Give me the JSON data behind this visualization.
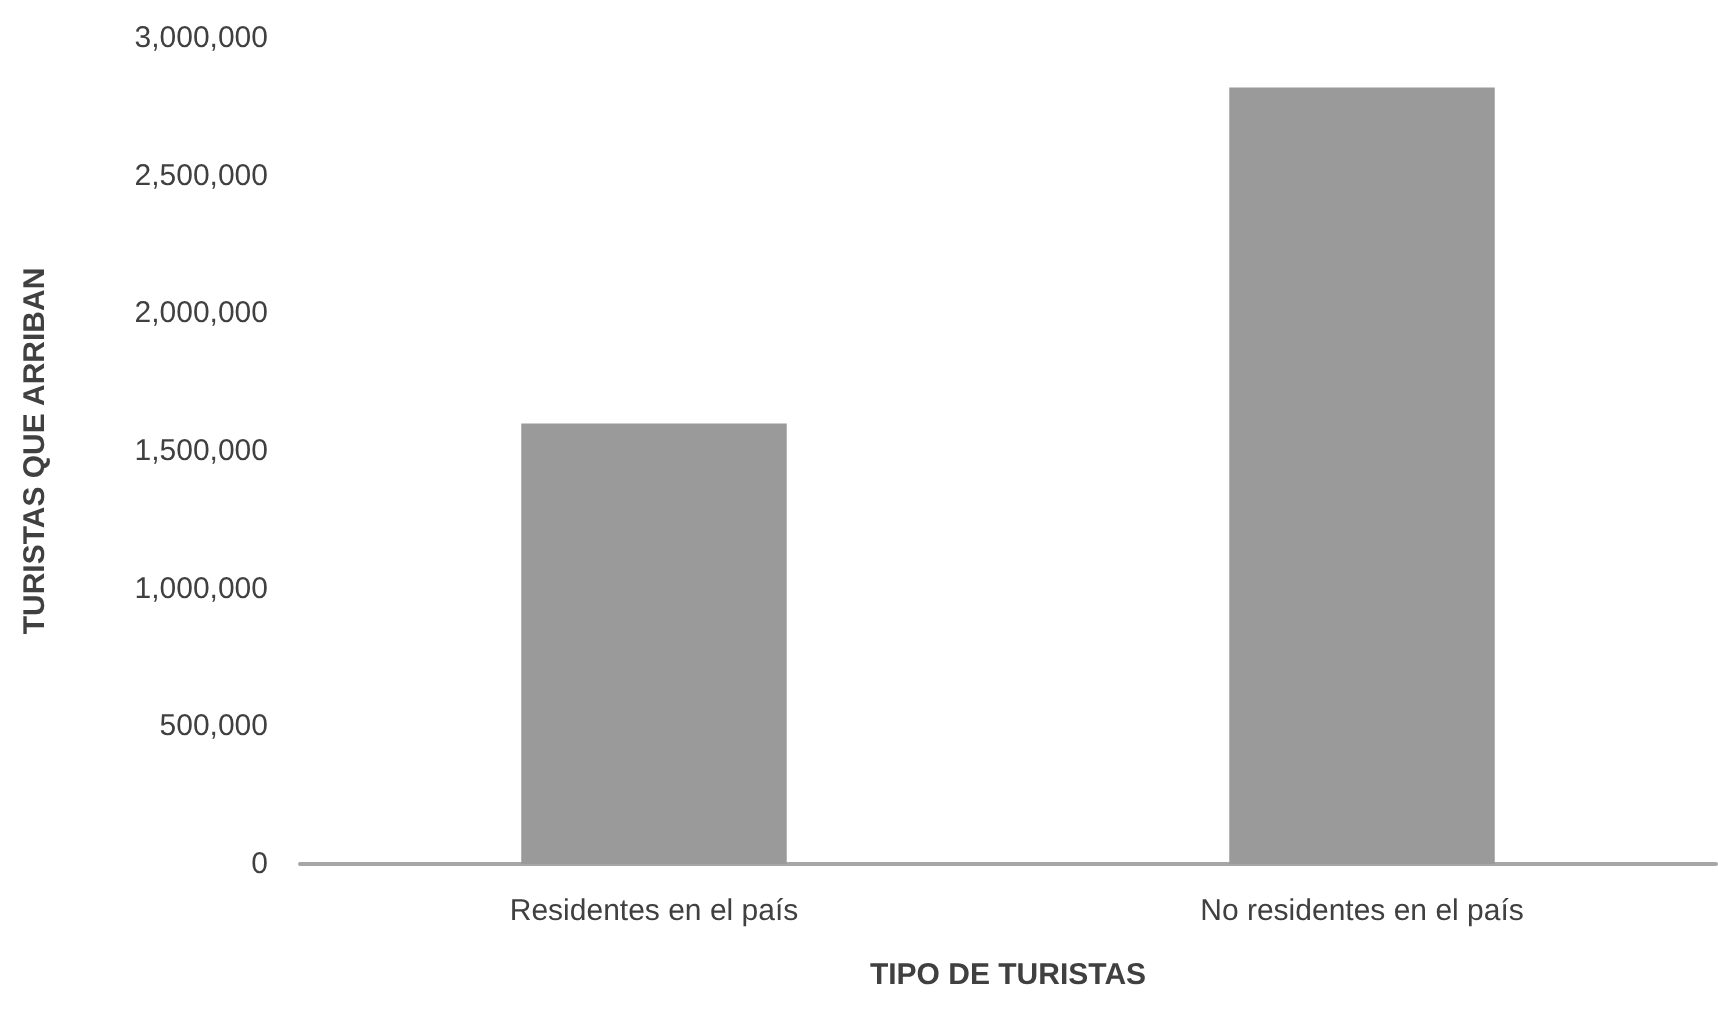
{
  "chart_data": {
    "type": "bar",
    "xlabel": "TIPO DE TURISTAS",
    "ylabel": "TURISTAS QUE ARRIBAN",
    "categories": [
      "Residentes en el país",
      "No residentes en el país"
    ],
    "values": [
      1600000,
      2820000
    ],
    "color": "#9a9a9a",
    "ylim": [
      0,
      3000000
    ],
    "yticks": [
      0,
      {
        "value": 500000,
        "label": "500,000"
      },
      {
        "value": 1000000,
        "label": "1,000,000"
      },
      {
        "value": 1500000,
        "label": "1,500,000"
      },
      {
        "value": 2000000,
        "label": "2,000,000"
      },
      {
        "value": 2500000,
        "label": "2,500,000"
      },
      {
        "value": 3000000,
        "label": "3,000,000"
      }
    ],
    "grid": false
  }
}
